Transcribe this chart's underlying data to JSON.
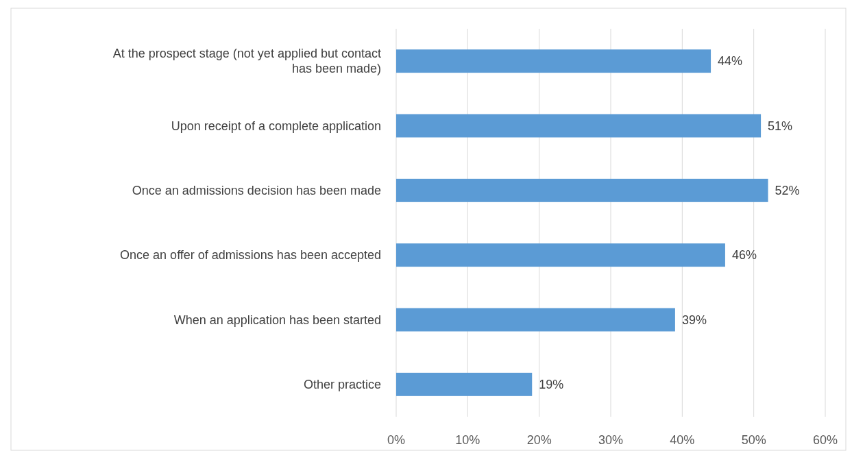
{
  "chart_data": {
    "type": "bar",
    "orientation": "horizontal",
    "categories": [
      "At the prospect stage (not yet applied but contact has been made)",
      "Upon receipt of a complete application",
      "Once an admissions decision has been made",
      "Once an offer of admissions has been accepted",
      "When an application has been started",
      "Other practice"
    ],
    "values": [
      44,
      51,
      52,
      46,
      39,
      19
    ],
    "value_labels": [
      "44%",
      "51%",
      "52%",
      "46%",
      "39%",
      "19%"
    ],
    "color": "#5b9bd5",
    "xlim": [
      0,
      60
    ],
    "xticks": [
      {
        "value": 0,
        "label": "0%"
      },
      {
        "value": 10,
        "label": "10%"
      },
      {
        "value": 20,
        "label": "20%"
      },
      {
        "value": 30,
        "label": "30%"
      },
      {
        "value": 40,
        "label": "40%"
      },
      {
        "value": 50,
        "label": "50%"
      },
      {
        "value": 60,
        "label": "60%"
      }
    ],
    "grid": "x"
  }
}
